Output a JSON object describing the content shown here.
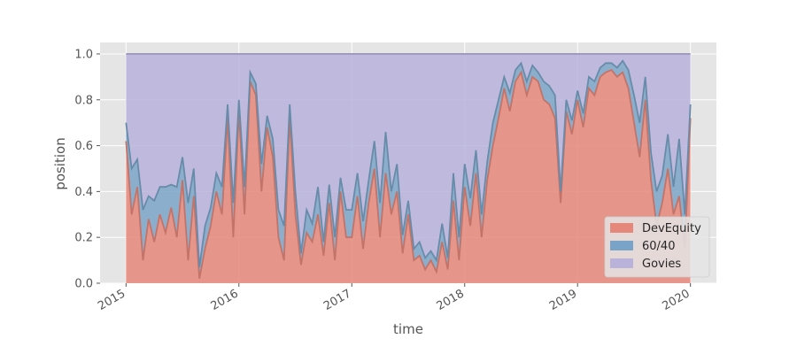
{
  "chart_data": {
    "type": "area",
    "stacked": true,
    "xlabel": "time",
    "ylabel": "position",
    "xlim": [
      2014.77,
      2020.23
    ],
    "ylim": [
      0,
      1.05
    ],
    "x_ticks": [
      {
        "value": 2015,
        "label": "2015"
      },
      {
        "value": 2016,
        "label": "2016"
      },
      {
        "value": 2017,
        "label": "2017"
      },
      {
        "value": 2018,
        "label": "2018"
      },
      {
        "value": 2019,
        "label": "2019"
      },
      {
        "value": 2020,
        "label": "2020"
      }
    ],
    "y_ticks": [
      {
        "value": 0.0,
        "label": "0.0"
      },
      {
        "value": 0.2,
        "label": "0.2"
      },
      {
        "value": 0.4,
        "label": "0.4"
      },
      {
        "value": 0.6,
        "label": "0.6"
      },
      {
        "value": 0.8,
        "label": "0.8"
      },
      {
        "value": 1.0,
        "label": "1.0"
      }
    ],
    "grid": true,
    "legend_position": "lower-right",
    "x": [
      2015.0,
      2015.05,
      2015.1,
      2015.15,
      2015.2,
      2015.25,
      2015.3,
      2015.35,
      2015.4,
      2015.45,
      2015.5,
      2015.55,
      2015.6,
      2015.65,
      2015.7,
      2015.75,
      2015.8,
      2015.85,
      2015.9,
      2015.95,
      2016.0,
      2016.05,
      2016.1,
      2016.15,
      2016.2,
      2016.25,
      2016.3,
      2016.35,
      2016.4,
      2016.45,
      2016.5,
      2016.55,
      2016.6,
      2016.65,
      2016.7,
      2016.75,
      2016.8,
      2016.85,
      2016.9,
      2016.95,
      2017.0,
      2017.05,
      2017.1,
      2017.15,
      2017.2,
      2017.25,
      2017.3,
      2017.35,
      2017.4,
      2017.45,
      2017.5,
      2017.55,
      2017.6,
      2017.65,
      2017.7,
      2017.75,
      2017.8,
      2017.85,
      2017.9,
      2017.95,
      2018.0,
      2018.05,
      2018.1,
      2018.15,
      2018.2,
      2018.25,
      2018.3,
      2018.35,
      2018.4,
      2018.45,
      2018.5,
      2018.55,
      2018.6,
      2018.65,
      2018.7,
      2018.75,
      2018.8,
      2018.85,
      2018.9,
      2018.95,
      2019.0,
      2019.05,
      2019.1,
      2019.15,
      2019.2,
      2019.25,
      2019.3,
      2019.35,
      2019.4,
      2019.45,
      2019.5,
      2019.55,
      2019.6,
      2019.65,
      2019.7,
      2019.75,
      2019.8,
      2019.85,
      2019.9,
      2019.95,
      2020.0
    ],
    "series": [
      {
        "name": "DevEquity",
        "color": "#e5877a",
        "values": [
          0.62,
          0.3,
          0.42,
          0.1,
          0.28,
          0.18,
          0.3,
          0.22,
          0.33,
          0.2,
          0.45,
          0.1,
          0.38,
          0.02,
          0.15,
          0.25,
          0.4,
          0.3,
          0.72,
          0.2,
          0.75,
          0.3,
          0.88,
          0.82,
          0.4,
          0.68,
          0.55,
          0.2,
          0.1,
          0.72,
          0.3,
          0.08,
          0.22,
          0.18,
          0.3,
          0.12,
          0.35,
          0.1,
          0.4,
          0.2,
          0.2,
          0.38,
          0.15,
          0.35,
          0.5,
          0.2,
          0.48,
          0.3,
          0.4,
          0.13,
          0.3,
          0.1,
          0.12,
          0.06,
          0.1,
          0.05,
          0.18,
          0.06,
          0.36,
          0.1,
          0.42,
          0.25,
          0.48,
          0.2,
          0.45,
          0.6,
          0.72,
          0.85,
          0.75,
          0.88,
          0.92,
          0.82,
          0.9,
          0.88,
          0.8,
          0.78,
          0.72,
          0.35,
          0.75,
          0.65,
          0.8,
          0.68,
          0.85,
          0.82,
          0.9,
          0.92,
          0.93,
          0.9,
          0.92,
          0.85,
          0.7,
          0.55,
          0.8,
          0.45,
          0.25,
          0.35,
          0.5,
          0.3,
          0.38,
          0.15,
          0.72
        ]
      },
      {
        "name": "60/40",
        "color": "#7aa4c7",
        "values": [
          0.08,
          0.2,
          0.12,
          0.22,
          0.1,
          0.18,
          0.12,
          0.2,
          0.1,
          0.22,
          0.1,
          0.25,
          0.12,
          0.05,
          0.1,
          0.08,
          0.08,
          0.12,
          0.06,
          0.15,
          0.05,
          0.12,
          0.04,
          0.05,
          0.12,
          0.05,
          0.08,
          0.12,
          0.15,
          0.06,
          0.1,
          0.05,
          0.1,
          0.08,
          0.12,
          0.06,
          0.08,
          0.1,
          0.06,
          0.12,
          0.12,
          0.1,
          0.12,
          0.1,
          0.12,
          0.15,
          0.18,
          0.1,
          0.12,
          0.08,
          0.06,
          0.05,
          0.06,
          0.05,
          0.04,
          0.05,
          0.08,
          0.05,
          0.12,
          0.1,
          0.1,
          0.12,
          0.1,
          0.1,
          0.08,
          0.1,
          0.08,
          0.05,
          0.08,
          0.05,
          0.04,
          0.06,
          0.05,
          0.04,
          0.08,
          0.08,
          0.1,
          0.05,
          0.05,
          0.06,
          0.04,
          0.06,
          0.05,
          0.06,
          0.04,
          0.04,
          0.03,
          0.04,
          0.05,
          0.08,
          0.12,
          0.15,
          0.1,
          0.12,
          0.15,
          0.12,
          0.15,
          0.12,
          0.25,
          0.15,
          0.06
        ]
      },
      {
        "name": "Govies",
        "color": "#b9b3dc",
        "values": [
          0.3,
          0.5,
          0.46,
          0.68,
          0.62,
          0.64,
          0.58,
          0.58,
          0.57,
          0.58,
          0.45,
          0.65,
          0.5,
          0.93,
          0.75,
          0.67,
          0.52,
          0.58,
          0.22,
          0.65,
          0.2,
          0.58,
          0.08,
          0.13,
          0.48,
          0.27,
          0.37,
          0.68,
          0.75,
          0.22,
          0.6,
          0.87,
          0.68,
          0.74,
          0.58,
          0.82,
          0.57,
          0.8,
          0.54,
          0.68,
          0.68,
          0.52,
          0.73,
          0.55,
          0.38,
          0.65,
          0.34,
          0.6,
          0.48,
          0.79,
          0.64,
          0.85,
          0.82,
          0.89,
          0.86,
          0.9,
          0.74,
          0.89,
          0.52,
          0.8,
          0.48,
          0.63,
          0.42,
          0.7,
          0.47,
          0.3,
          0.2,
          0.1,
          0.17,
          0.07,
          0.04,
          0.12,
          0.05,
          0.08,
          0.12,
          0.14,
          0.18,
          0.6,
          0.2,
          0.29,
          0.16,
          0.26,
          0.1,
          0.12,
          0.06,
          0.04,
          0.04,
          0.06,
          0.03,
          0.07,
          0.18,
          0.3,
          0.1,
          0.43,
          0.6,
          0.53,
          0.35,
          0.58,
          0.37,
          0.7,
          0.22
        ]
      }
    ]
  }
}
